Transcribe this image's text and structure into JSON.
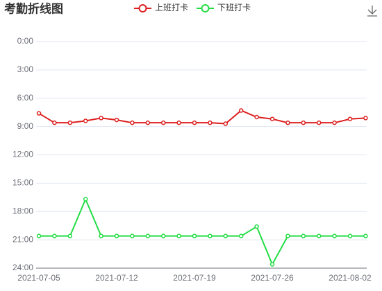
{
  "chart_data": {
    "type": "line",
    "title": "考勤折线图",
    "categories": [
      "2021-07-05",
      null,
      null,
      null,
      null,
      "2021-07-12",
      null,
      null,
      null,
      null,
      "2021-07-19",
      null,
      null,
      null,
      null,
      "2021-07-26",
      null,
      null,
      null,
      null,
      "2021-08-02",
      null
    ],
    "series": [
      {
        "name": "上班打卡",
        "color": "#dd1f1f",
        "values": [
          7.6,
          8.6,
          8.6,
          8.4,
          8.1,
          8.3,
          8.6,
          8.6,
          8.6,
          8.6,
          8.6,
          8.6,
          8.7,
          7.3,
          8.0,
          8.2,
          8.6,
          8.6,
          8.6,
          8.6,
          8.2,
          8.1
        ]
      },
      {
        "name": "下班打卡",
        "color": "#22dd44",
        "values": [
          20.6,
          20.6,
          20.6,
          16.7,
          20.6,
          20.6,
          20.6,
          20.6,
          20.6,
          20.6,
          20.6,
          20.6,
          20.6,
          20.6,
          19.6,
          23.6,
          20.6,
          20.6,
          20.6,
          20.6,
          20.6,
          20.6
        ]
      }
    ],
    "ylim": [
      0,
      24
    ],
    "y_inverted": true,
    "yticks": [
      {
        "value": 0,
        "label": "0:00"
      },
      {
        "value": 3,
        "label": "3:00"
      },
      {
        "value": 6,
        "label": "6:00"
      },
      {
        "value": 9,
        "label": "9:00"
      },
      {
        "value": 12,
        "label": "12:00"
      },
      {
        "value": 15,
        "label": "15:00"
      },
      {
        "value": 18,
        "label": "18:00"
      },
      {
        "value": 21,
        "label": "21:00"
      },
      {
        "value": 24,
        "label": "24:00"
      }
    ],
    "grid": true
  }
}
